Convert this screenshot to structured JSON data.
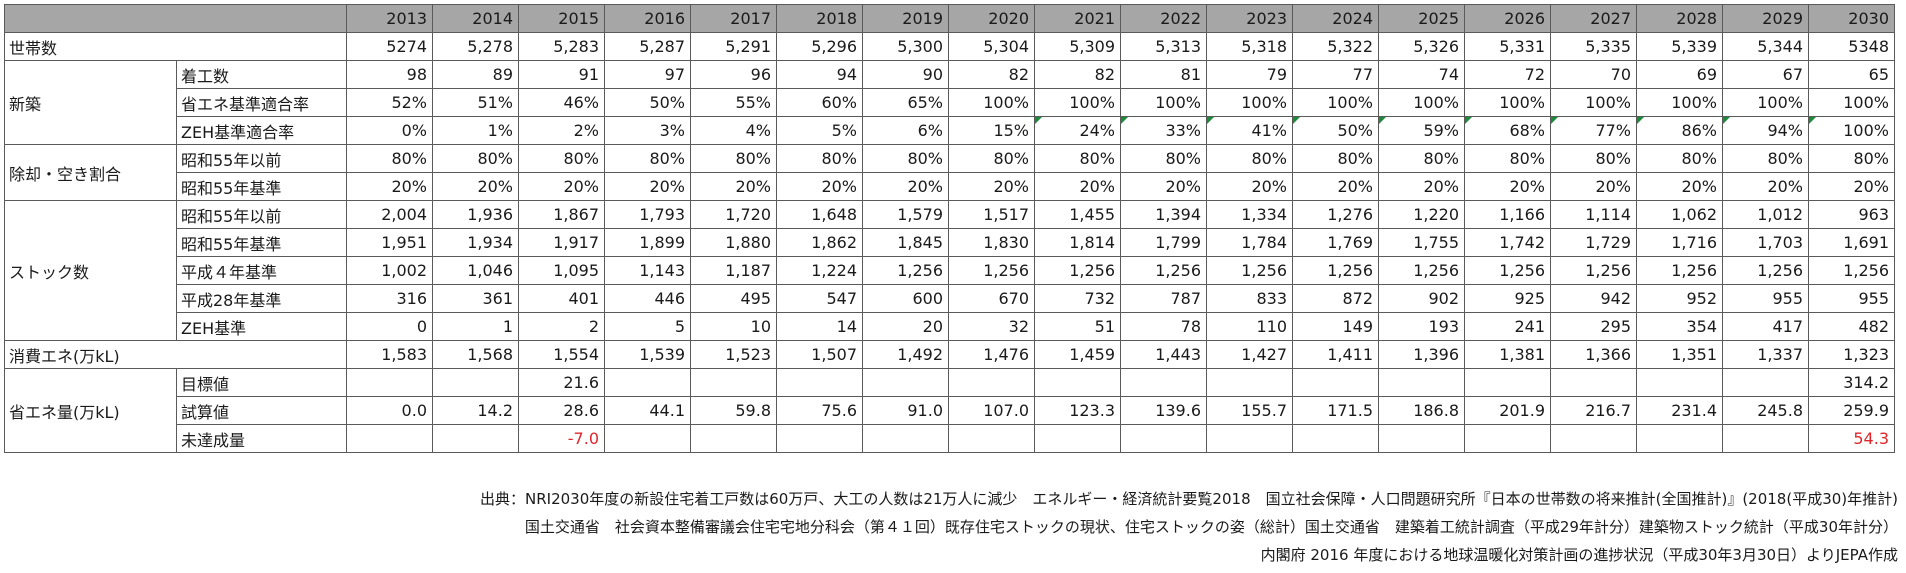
{
  "years": [
    "2013",
    "2014",
    "2015",
    "2016",
    "2017",
    "2018",
    "2019",
    "2020",
    "2021",
    "2022",
    "2023",
    "2024",
    "2025",
    "2026",
    "2027",
    "2028",
    "2029",
    "2030"
  ],
  "rows": [
    {
      "group": "世帯数",
      "groupSpan": 1,
      "label": "",
      "values": [
        "5274",
        "5,278",
        "5,283",
        "5,287",
        "5,291",
        "5,296",
        "5,300",
        "5,304",
        "5,309",
        "5,313",
        "5,318",
        "5,322",
        "5,326",
        "5,331",
        "5,335",
        "5,339",
        "5,344",
        "5348"
      ]
    },
    {
      "group": "新築",
      "groupSpan": 3,
      "label": "着工数",
      "values": [
        "98",
        "89",
        "91",
        "97",
        "96",
        "94",
        "90",
        "82",
        "82",
        "81",
        "79",
        "77",
        "74",
        "72",
        "70",
        "69",
        "67",
        "65"
      ]
    },
    {
      "group": null,
      "label": "省エネ基準適合率",
      "values": [
        "52%",
        "51%",
        "46%",
        "50%",
        "55%",
        "60%",
        "65%",
        "100%",
        "100%",
        "100%",
        "100%",
        "100%",
        "100%",
        "100%",
        "100%",
        "100%",
        "100%",
        "100%"
      ]
    },
    {
      "group": null,
      "label": "ZEH基準適合率",
      "values": [
        "0%",
        "1%",
        "2%",
        "3%",
        "4%",
        "5%",
        "6%",
        "15%",
        "24%",
        "33%",
        "41%",
        "50%",
        "59%",
        "68%",
        "77%",
        "86%",
        "94%",
        "100%"
      ],
      "marks": [
        8,
        9,
        10,
        11,
        12,
        13,
        14,
        15,
        16,
        17
      ]
    },
    {
      "group": "除却・空き割合",
      "groupSpan": 2,
      "label": "昭和55年以前",
      "values": [
        "80%",
        "80%",
        "80%",
        "80%",
        "80%",
        "80%",
        "80%",
        "80%",
        "80%",
        "80%",
        "80%",
        "80%",
        "80%",
        "80%",
        "80%",
        "80%",
        "80%",
        "80%"
      ]
    },
    {
      "group": null,
      "label": "昭和55年基準",
      "values": [
        "20%",
        "20%",
        "20%",
        "20%",
        "20%",
        "20%",
        "20%",
        "20%",
        "20%",
        "20%",
        "20%",
        "20%",
        "20%",
        "20%",
        "20%",
        "20%",
        "20%",
        "20%"
      ]
    },
    {
      "group": "ストック数",
      "groupSpan": 5,
      "label": "昭和55年以前",
      "values": [
        "2,004",
        "1,936",
        "1,867",
        "1,793",
        "1,720",
        "1,648",
        "1,579",
        "1,517",
        "1,455",
        "1,394",
        "1,334",
        "1,276",
        "1,220",
        "1,166",
        "1,114",
        "1,062",
        "1,012",
        "963"
      ]
    },
    {
      "group": null,
      "label": "昭和55年基準",
      "values": [
        "1,951",
        "1,934",
        "1,917",
        "1,899",
        "1,880",
        "1,862",
        "1,845",
        "1,830",
        "1,814",
        "1,799",
        "1,784",
        "1,769",
        "1,755",
        "1,742",
        "1,729",
        "1,716",
        "1,703",
        "1,691"
      ]
    },
    {
      "group": null,
      "label": "平成４年基準",
      "values": [
        "1,002",
        "1,046",
        "1,095",
        "1,143",
        "1,187",
        "1,224",
        "1,256",
        "1,256",
        "1,256",
        "1,256",
        "1,256",
        "1,256",
        "1,256",
        "1,256",
        "1,256",
        "1,256",
        "1,256",
        "1,256"
      ]
    },
    {
      "group": null,
      "label": "平成28年基準",
      "values": [
        "316",
        "361",
        "401",
        "446",
        "495",
        "547",
        "600",
        "670",
        "732",
        "787",
        "833",
        "872",
        "902",
        "925",
        "942",
        "952",
        "955",
        "955"
      ]
    },
    {
      "group": null,
      "label": "ZEH基準",
      "values": [
        "0",
        "1",
        "2",
        "5",
        "10",
        "14",
        "20",
        "32",
        "51",
        "78",
        "110",
        "149",
        "193",
        "241",
        "295",
        "354",
        "417",
        "482"
      ]
    },
    {
      "group": "消費エネ(万kL)",
      "groupSpan": 1,
      "label": "",
      "values": [
        "1,583",
        "1,568",
        "1,554",
        "1,539",
        "1,523",
        "1,507",
        "1,492",
        "1,476",
        "1,459",
        "1,443",
        "1,427",
        "1,411",
        "1,396",
        "1,381",
        "1,366",
        "1,351",
        "1,337",
        "1,323"
      ]
    },
    {
      "group": "省エネ量(万kL)",
      "groupSpan": 3,
      "label": "目標値",
      "values": [
        "",
        "",
        "21.6",
        "",
        "",
        "",
        "",
        "",
        "",
        "",
        "",
        "",
        "",
        "",
        "",
        "",
        "",
        "314.2"
      ]
    },
    {
      "group": null,
      "label": "試算値",
      "values": [
        "0.0",
        "14.2",
        "28.6",
        "44.1",
        "59.8",
        "75.6",
        "91.0",
        "107.0",
        "123.3",
        "139.6",
        "155.7",
        "171.5",
        "186.8",
        "201.9",
        "216.7",
        "231.4",
        "245.8",
        "259.9"
      ]
    },
    {
      "group": null,
      "label": "未達成量",
      "values": [
        "",
        "",
        "-7.0",
        "",
        "",
        "",
        "",
        "",
        "",
        "",
        "",
        "",
        "",
        "",
        "",
        "",
        "",
        "54.3"
      ],
      "red": true
    }
  ],
  "sources": {
    "line1": "出典：NRI2030年度の新設住宅着工戸数は60万戸、大工の人数は21万人に減少　エネルギー・経済統計要覧2018　国立社会保障・人口問題研究所『日本の世帯数の将来推計(全国推計)』(2018(平成30)年推計)",
    "line2": "国土交通省　社会資本整備審議会住宅宅地分科会（第４１回）既存住宅ストックの現状、住宅ストックの姿（総計）国土交通省　建築着工統計調査（平成29年計分）建築物ストック統計（平成30年計分）",
    "line3": "内閣府 2016 年度における地球温暖化対策計画の進捗状況（平成30年3月30日）よりJEPA作成"
  },
  "colors": {
    "header_bg": "#a6a6a6",
    "grid": "#5a5a5a",
    "negative": "#e0262b",
    "comment_marker": "#1f8a3c"
  }
}
